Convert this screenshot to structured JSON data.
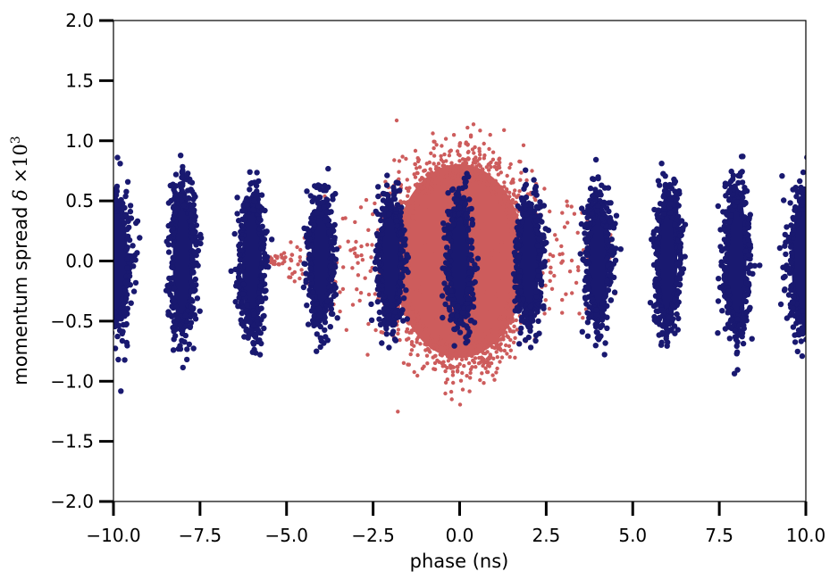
{
  "chart_data": {
    "type": "scatter",
    "title": "",
    "xlabel": "phase (ns)",
    "ylabel_main": "momentum spread ",
    "ylabel_delta": "δ",
    "ylabel_times": " ×10",
    "ylabel_exp": "3",
    "xlim": [
      -10,
      10
    ],
    "ylim": [
      -2,
      2
    ],
    "xticks": [
      -10,
      -7.5,
      -5,
      -2.5,
      0,
      2.5,
      5,
      7.5,
      10
    ],
    "xtick_labels": [
      "−10.0",
      "−7.5",
      "−5.0",
      "−2.5",
      "0.0",
      "2.5",
      "5.0",
      "7.5",
      "10.0"
    ],
    "yticks": [
      -2,
      -1.5,
      -1,
      -0.5,
      0,
      0.5,
      1,
      1.5,
      2
    ],
    "ytick_labels": [
      "−2.0",
      "−1.5",
      "−1.0",
      "−0.5",
      "0.0",
      "0.5",
      "1.0",
      "1.5",
      "2.0"
    ],
    "grid": false,
    "series": [
      {
        "color": "#cd5c5c",
        "point_count": 1400,
        "center_phase": 0.0,
        "core_half_width": 2.0,
        "core_half_height": 0.85,
        "halo_phase_range": [
          -5.5,
          4.5
        ],
        "halo_delta_range": [
          -1.25,
          1.35
        ]
      },
      {
        "color": "#191970",
        "bunch_centers": [
          -10,
          -8,
          -6,
          -4,
          -2,
          0,
          2,
          4,
          6,
          8,
          10
        ],
        "bunch_half_widths": [
          0.55,
          0.38,
          0.38,
          0.38,
          0.38,
          0.38,
          0.38,
          0.38,
          0.38,
          0.38,
          0.55
        ],
        "bunch_half_heights": [
          0.6,
          0.65,
          0.6,
          0.55,
          0.55,
          0.55,
          0.55,
          0.55,
          0.6,
          0.65,
          0.6
        ],
        "points_per_bunch": 260
      }
    ]
  }
}
